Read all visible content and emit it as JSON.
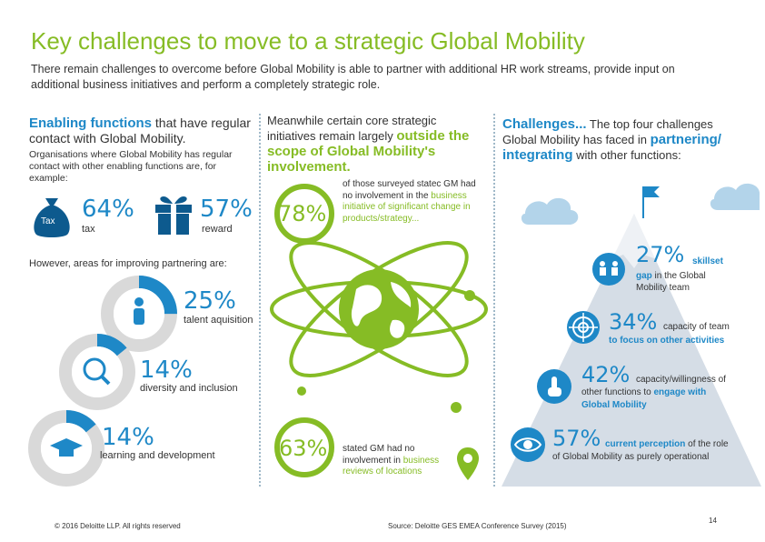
{
  "title": "Key challenges to move to a strategic Global Mobility",
  "intro": "There remain challenges to overcome before Global Mobility is able to partner with additional HR work streams, provide input on additional business initiatives and perform a completely strategic role.",
  "left": {
    "head_bold": "Enabling functions",
    "head_rest": " that have regular contact with Global Mobility.",
    "sub": "Organisations where Global Mobility has regular contact with other enabling functions are, for example:",
    "stat1": {
      "pct": "64%",
      "label": "tax",
      "icon_text": "Tax"
    },
    "stat2": {
      "pct": "57%",
      "label": "reward"
    },
    "areas_head": "However, areas for improving partnering are:",
    "area1": {
      "pct": "25%",
      "label": "talent aquisition",
      "value": 0.25
    },
    "area2": {
      "pct": "14%",
      "label": "diversity and inclusion",
      "value": 0.14
    },
    "area3": {
      "pct": "14%",
      "label": "learning and development",
      "value": 0.14
    }
  },
  "middle": {
    "head_pre": "Meanwhile certain core strategic initiatives remain largely ",
    "head_green": "outside the scope of Global Mobility's involvement.",
    "stat1": {
      "pct": "78%",
      "text_pre": "of those surveyed statec GM had no involvement in the ",
      "text_blue": "business initiative of significant change in products/strategy..."
    },
    "stat2": {
      "pct": "63%",
      "text_pre": "stated GM had no involvement in ",
      "text_blue": "business reviews of locations"
    }
  },
  "right": {
    "head_blue1": "Challenges...",
    "head_rest": " The top four challenges Global Mobility has faced in ",
    "head_blue2": "partnering/ integrating",
    "head_end": " with other functions:",
    "c1": {
      "pct": "27%",
      "bold": "skillset",
      "text_blue": "gap",
      "text_rest": " in the Global Mobility team"
    },
    "c2": {
      "pct": "34%",
      "text_rest": "capacity of team",
      "text_blue": "to focus on other activities"
    },
    "c3": {
      "pct": "42%",
      "text_rest": "capacity/willingness of other functions to ",
      "text_blue": "engage with Global Mobility"
    },
    "c4": {
      "pct": "57%",
      "text_blue": "current perception",
      "text_rest": " of the role of Global Mobility as purely operational"
    }
  },
  "footer": {
    "copyright": "© 2016 Deloitte LLP. All rights reserved",
    "source": "Source: Deloitte GES EMEA Conference Survey (2015)",
    "page": "14"
  },
  "colors": {
    "green": "#86bc25",
    "blue": "#1e88c7",
    "grey": "#d9d9d9",
    "dark": "#0d5a8e"
  }
}
